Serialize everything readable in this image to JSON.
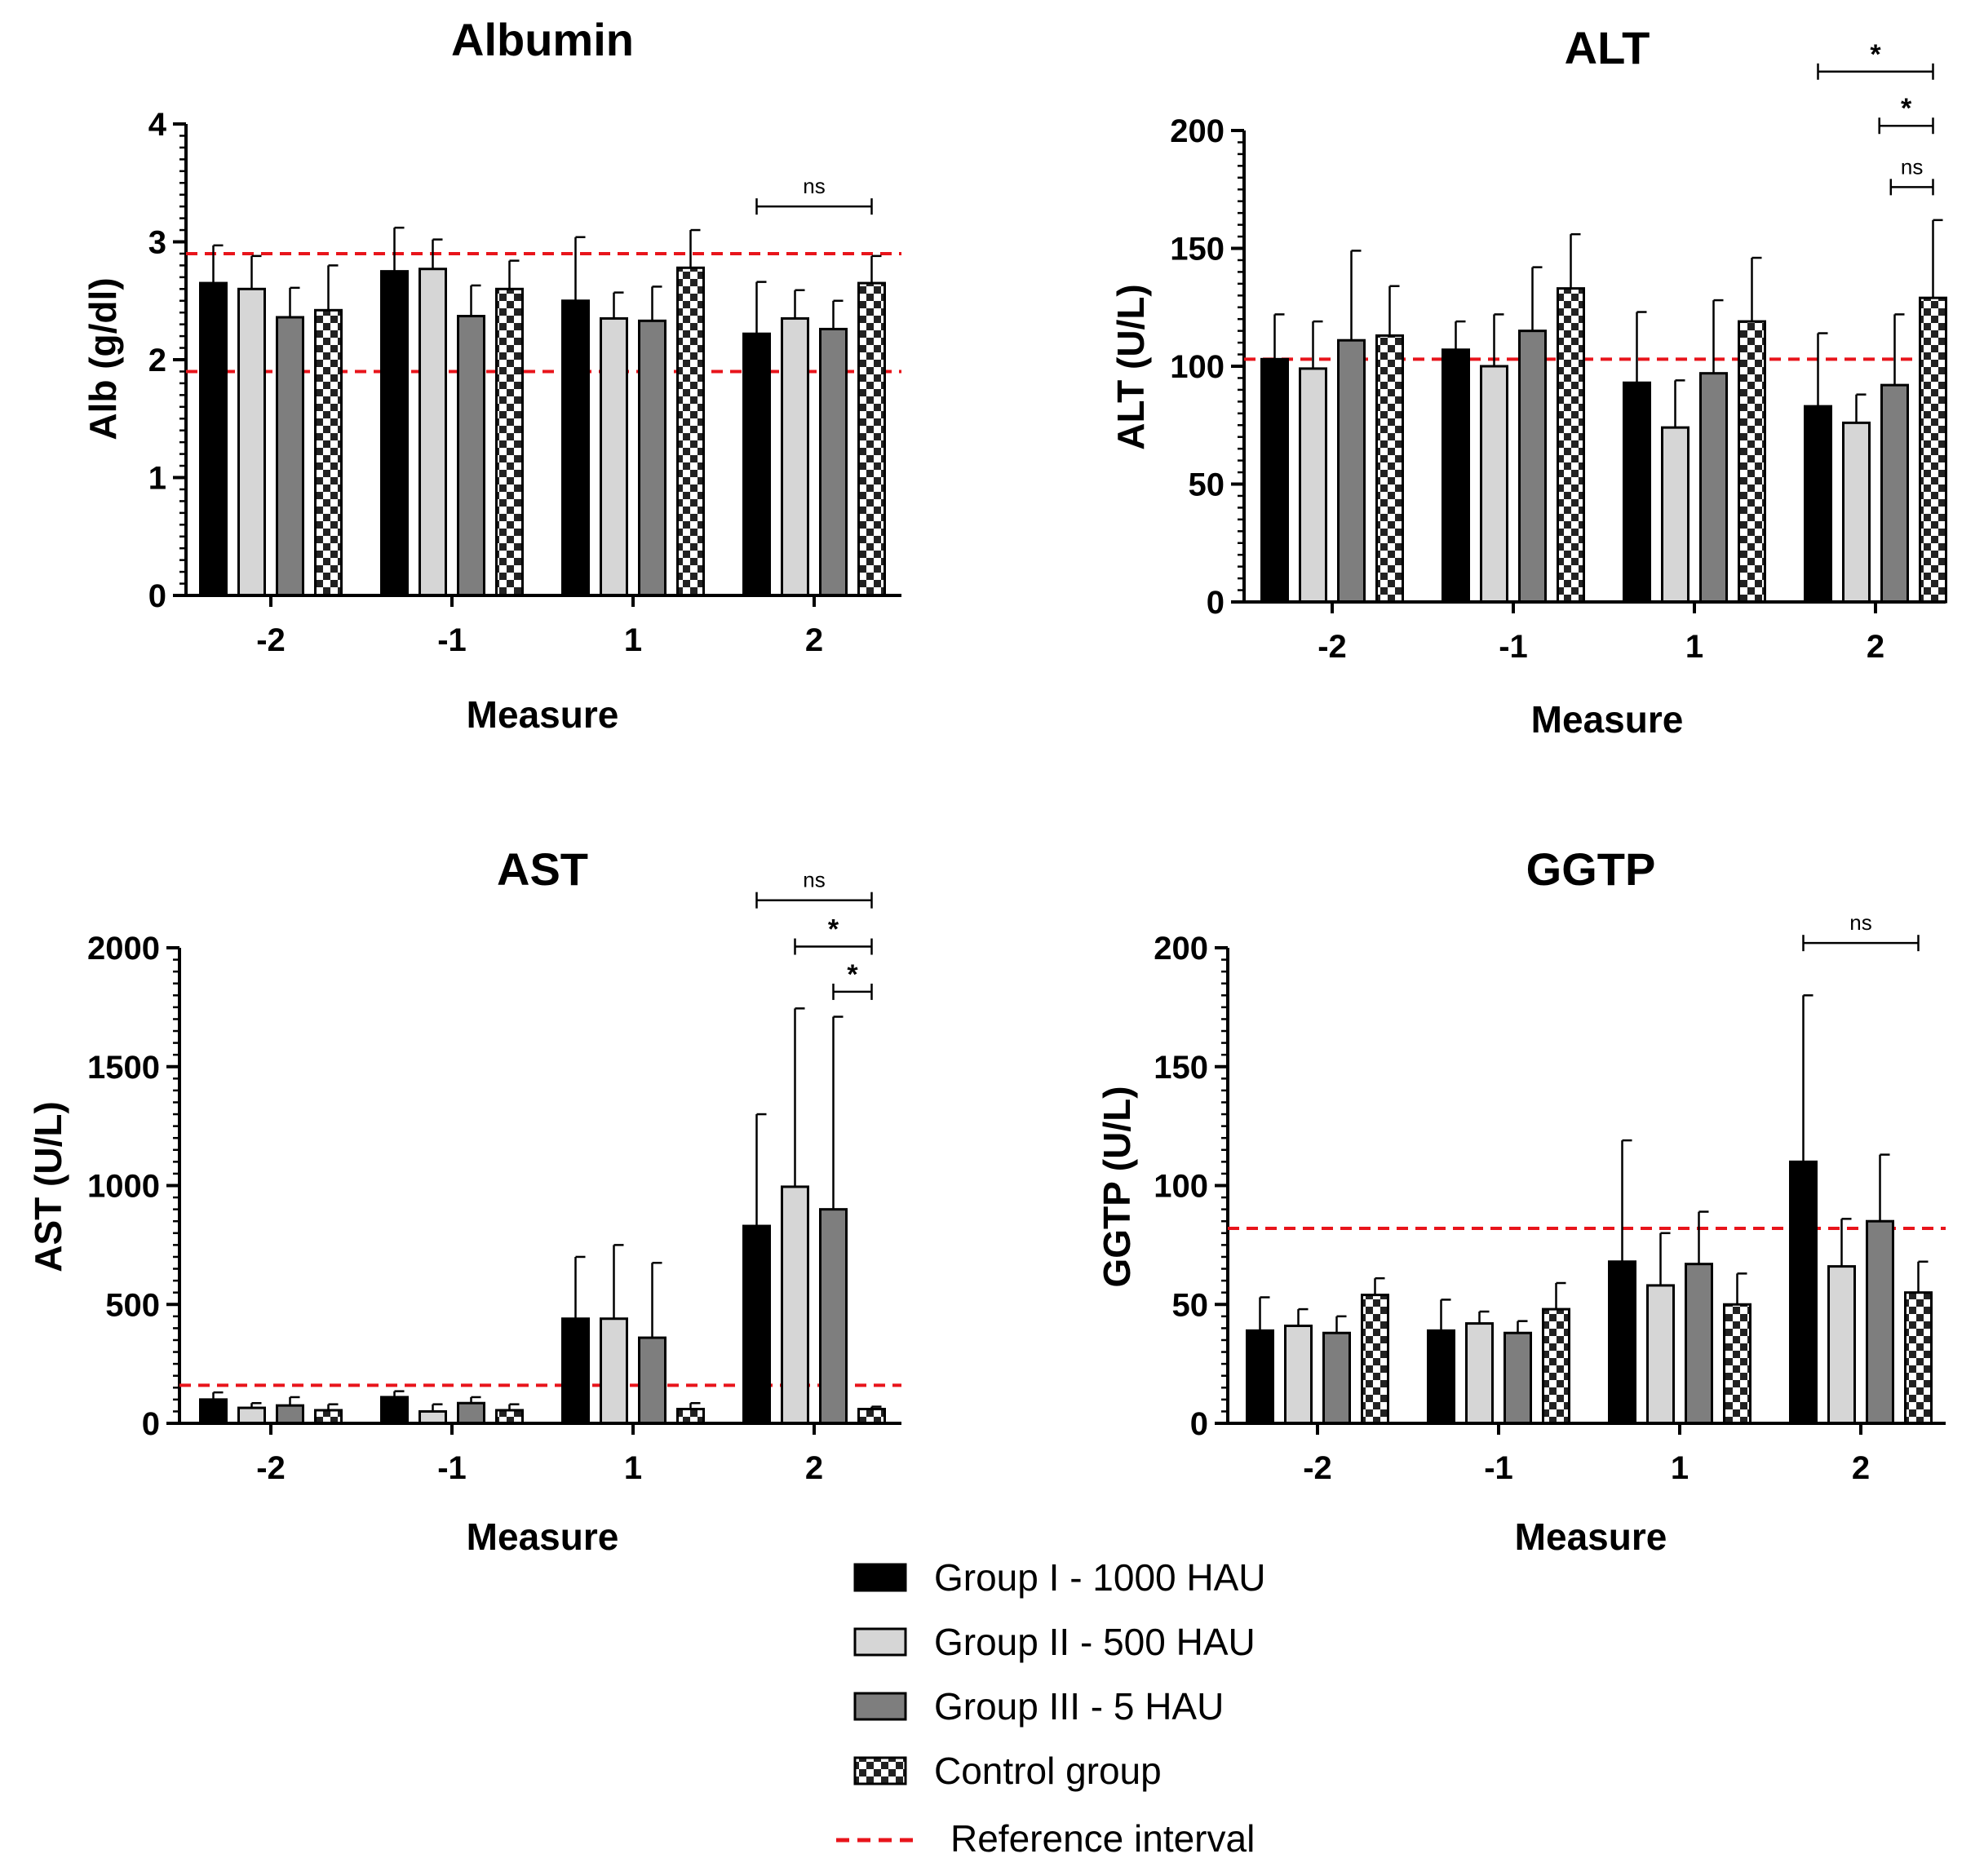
{
  "colors": {
    "group1": "#000000",
    "group2": "#d6d6d6",
    "group3": "#7e7e7e",
    "reference": "#e8141b"
  },
  "legend": {
    "items": [
      {
        "label": "Group I - 1000 HAU",
        "style": "solid-black"
      },
      {
        "label": "Group II - 500 HAU",
        "style": "light-gray"
      },
      {
        "label": "Group III - 5 HAU",
        "style": "dark-gray"
      },
      {
        "label": "Control group",
        "style": "checker"
      }
    ],
    "reference_label": "Reference interval"
  },
  "chart_data": [
    {
      "type": "bar",
      "title": "Albumin",
      "xlabel": "Measure",
      "ylabel": "Alb (g/dl)",
      "categories": [
        "-2",
        "-1",
        "1",
        "2"
      ],
      "ylim": [
        0,
        4
      ],
      "yticks": [
        0,
        1,
        2,
        3,
        4
      ],
      "series": [
        {
          "name": "Group I - 1000 HAU",
          "values": [
            2.65,
            2.75,
            2.5,
            2.22
          ],
          "errors": [
            0.32,
            0.37,
            0.54,
            0.44
          ]
        },
        {
          "name": "Group II - 500 HAU",
          "values": [
            2.6,
            2.77,
            2.35,
            2.35
          ],
          "errors": [
            0.28,
            0.25,
            0.22,
            0.24
          ]
        },
        {
          "name": "Group III - 5 HAU",
          "values": [
            2.36,
            2.37,
            2.33,
            2.26
          ],
          "errors": [
            0.25,
            0.26,
            0.29,
            0.24
          ]
        },
        {
          "name": "Control group",
          "values": [
            2.42,
            2.6,
            2.78,
            2.65
          ],
          "errors": [
            0.38,
            0.24,
            0.32,
            0.23
          ]
        }
      ],
      "reference": [
        1.9,
        2.9
      ],
      "significance": [
        {
          "category": "2",
          "from": 0,
          "to": 3,
          "label": "ns",
          "level": 3.3
        }
      ]
    },
    {
      "type": "bar",
      "title": "ALT",
      "xlabel": "Measure",
      "ylabel": "ALT (U/L)",
      "categories": [
        "-2",
        "-1",
        "1",
        "2"
      ],
      "ylim": [
        0,
        200
      ],
      "yticks": [
        0,
        50,
        100,
        150,
        200
      ],
      "series": [
        {
          "name": "Group I - 1000 HAU",
          "values": [
            103,
            107,
            93,
            83
          ],
          "errors": [
            19,
            12,
            30,
            31
          ]
        },
        {
          "name": "Group II - 500 HAU",
          "values": [
            99,
            100,
            74,
            76
          ],
          "errors": [
            20,
            22,
            20,
            12
          ]
        },
        {
          "name": "Group III - 5 HAU",
          "values": [
            111,
            115,
            97,
            92
          ],
          "errors": [
            38,
            27,
            31,
            30
          ]
        },
        {
          "name": "Control group",
          "values": [
            113,
            133,
            119,
            129
          ],
          "errors": [
            21,
            23,
            27,
            33
          ]
        }
      ],
      "reference": [
        0,
        103
      ],
      "significance": [
        {
          "category": "2",
          "from": 0,
          "to": 3,
          "label": "*",
          "level": 225
        },
        {
          "category": "2",
          "from": 1.6,
          "to": 3,
          "label": "*",
          "level": 202
        },
        {
          "category": "2",
          "from": 1.9,
          "to": 3,
          "label": "ns",
          "level": 176
        }
      ]
    },
    {
      "type": "bar",
      "title": "AST",
      "xlabel": "Measure",
      "ylabel": "AST (U/L)",
      "categories": [
        "-2",
        "-1",
        "1",
        "2"
      ],
      "ylim": [
        0,
        2000
      ],
      "yticks": [
        0,
        500,
        1000,
        1500,
        2000
      ],
      "series": [
        {
          "name": "Group I - 1000 HAU",
          "values": [
            100,
            110,
            440,
            830
          ],
          "errors": [
            30,
            25,
            260,
            470
          ]
        },
        {
          "name": "Group II - 500 HAU",
          "values": [
            65,
            50,
            440,
            995
          ],
          "errors": [
            20,
            30,
            310,
            750
          ]
        },
        {
          "name": "Group III - 5 HAU",
          "values": [
            75,
            85,
            360,
            900
          ],
          "errors": [
            35,
            25,
            315,
            810
          ]
        },
        {
          "name": "Control group",
          "values": [
            55,
            55,
            60,
            60
          ],
          "errors": [
            25,
            25,
            25,
            10
          ]
        }
      ],
      "reference": [
        0,
        160
      ],
      "significance": [
        {
          "category": "2",
          "from": 0,
          "to": 3,
          "label": "ns",
          "level": 2200
        },
        {
          "category": "2",
          "from": 1,
          "to": 3,
          "label": "*",
          "level": 2005
        },
        {
          "category": "2",
          "from": 2,
          "to": 3,
          "label": "*",
          "level": 1815
        }
      ]
    },
    {
      "type": "bar",
      "title": "GGTP",
      "xlabel": "Measure",
      "ylabel": "GGTP (U/L)",
      "categories": [
        "-2",
        "-1",
        "1",
        "2"
      ],
      "ylim": [
        0,
        200
      ],
      "yticks": [
        0,
        50,
        100,
        150,
        200
      ],
      "series": [
        {
          "name": "Group I - 1000 HAU",
          "values": [
            39,
            39,
            68,
            110
          ],
          "errors": [
            14,
            13,
            51,
            70
          ]
        },
        {
          "name": "Group II - 500 HAU",
          "values": [
            41,
            42,
            58,
            66
          ],
          "errors": [
            7,
            5,
            22,
            20
          ]
        },
        {
          "name": "Group III - 5 HAU",
          "values": [
            38,
            38,
            67,
            85
          ],
          "errors": [
            7,
            5,
            22,
            28
          ]
        },
        {
          "name": "Control group",
          "values": [
            54,
            48,
            50,
            55
          ],
          "errors": [
            7,
            11,
            13,
            13
          ]
        }
      ],
      "reference": [
        0,
        82
      ],
      "significance": [
        {
          "category": "2",
          "from": 0,
          "to": 3,
          "label": "ns",
          "level": 202
        }
      ]
    }
  ]
}
